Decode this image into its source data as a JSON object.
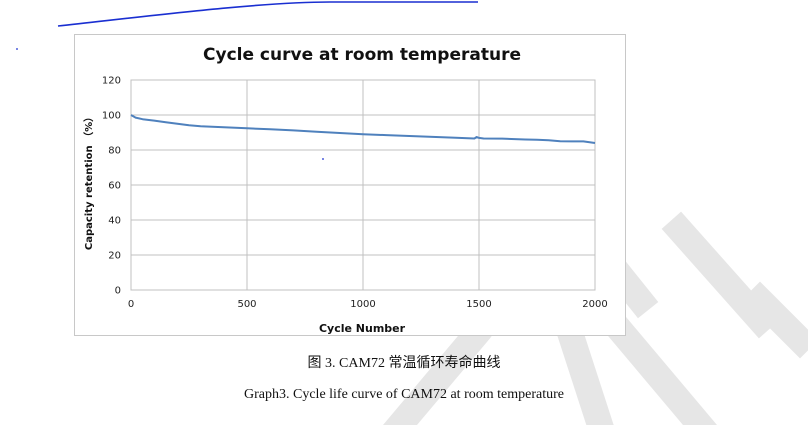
{
  "chart_data": {
    "type": "line",
    "title": "Cycle curve at room temperature",
    "xlabel": "Cycle Number",
    "ylabel": "Capacity retention （%）",
    "xlim": [
      0,
      2000
    ],
    "ylim": [
      0,
      120
    ],
    "xticks": [
      "0",
      "500",
      "1000",
      "1500",
      "2000"
    ],
    "yticks": [
      "0",
      "20",
      "40",
      "60",
      "80",
      "100",
      "120"
    ],
    "grid": true,
    "line_color": "#4f81bd",
    "series": [
      {
        "x": [
          0,
          20,
          50,
          100,
          150,
          200,
          250,
          300,
          400,
          500,
          600,
          700,
          800,
          900,
          1000,
          1100,
          1200,
          1300,
          1400,
          1480,
          1490,
          1500,
          1520,
          1600,
          1700,
          1750,
          1800,
          1850,
          1900,
          1950,
          2000
        ],
        "y": [
          100,
          98.5,
          97.6,
          96.8,
          95.8,
          95.0,
          94.2,
          93.6,
          93.0,
          92.4,
          91.8,
          91.2,
          90.4,
          89.7,
          89.0,
          88.5,
          88.0,
          87.5,
          87.0,
          86.6,
          87.4,
          86.9,
          86.6,
          86.5,
          86.0,
          85.9,
          85.6,
          85.0,
          84.9,
          84.9,
          84.0
        ]
      }
    ]
  },
  "captions": {
    "cn": "图 3. CAM72  常温循环寿命曲线",
    "en": "Graph3. Cycle life curve of CAM72 at room temperature"
  },
  "colors": {
    "watermark": "#e6e6e6",
    "pen_stroke": "#1a2fd1",
    "grid": "#c0c0c0"
  }
}
